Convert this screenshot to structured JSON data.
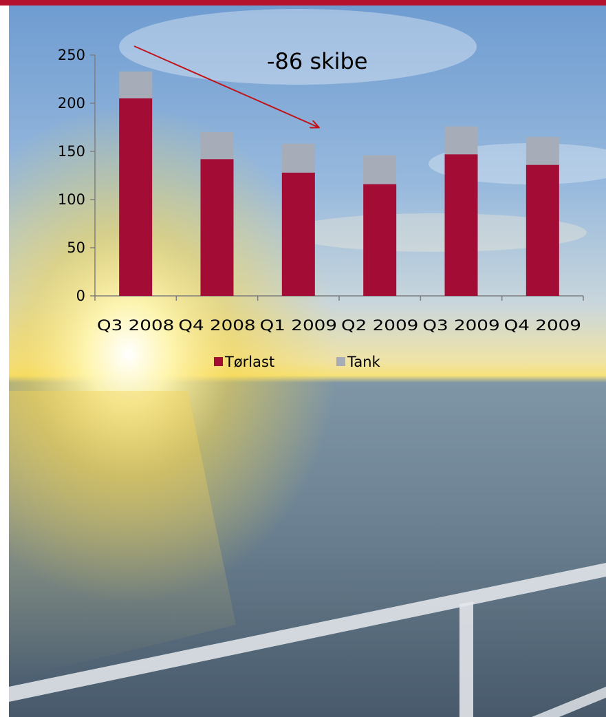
{
  "colors": {
    "accent_bar": "#b5122e",
    "series_torlast": "#a30d35",
    "series_tank": "#a6adb8",
    "arrow": "#c0141a"
  },
  "chart_data": {
    "type": "bar",
    "stacked": true,
    "categories": [
      "Q3  2008",
      "Q4  2008",
      "Q1  2009",
      "Q2  2009",
      "Q3  2009",
      "Q4  2009"
    ],
    "series": [
      {
        "name": "Tørlast",
        "values": [
          205,
          142,
          128,
          116,
          147,
          136
        ]
      },
      {
        "name": "Tank",
        "values": [
          28,
          28,
          30,
          30,
          29,
          29
        ]
      }
    ],
    "title": "",
    "xlabel": "",
    "ylabel": "",
    "ylim": [
      0,
      250
    ],
    "yticks": [
      0,
      50,
      100,
      150,
      200,
      250
    ],
    "grid": false,
    "legend": "bottom",
    "annotation": "-86 skibe"
  }
}
